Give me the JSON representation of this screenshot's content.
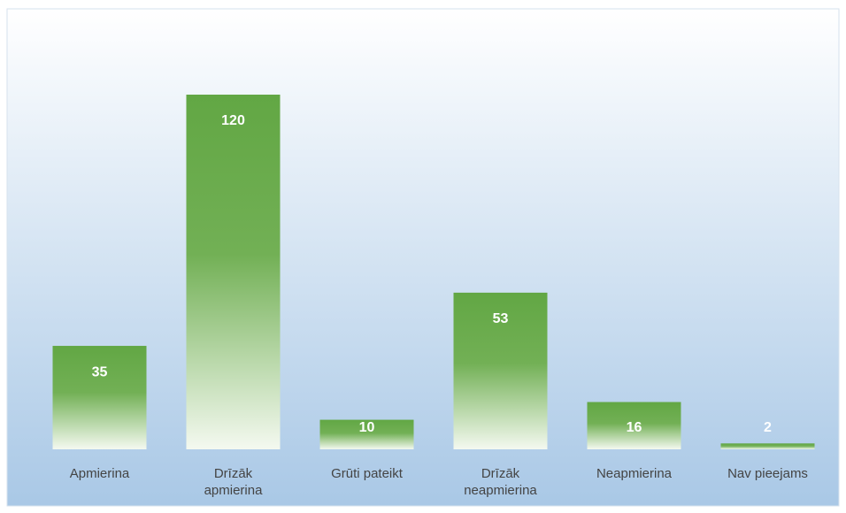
{
  "chart_data": {
    "type": "bar",
    "categories": [
      "Apmierina",
      "Drīzāk apmierina",
      "Grūti pateikt",
      "Drīzāk neapmierina",
      "Neapmierina",
      "Nav pieejams"
    ],
    "values": [
      35,
      120,
      10,
      53,
      16,
      2
    ],
    "color": "#62a744"
  }
}
